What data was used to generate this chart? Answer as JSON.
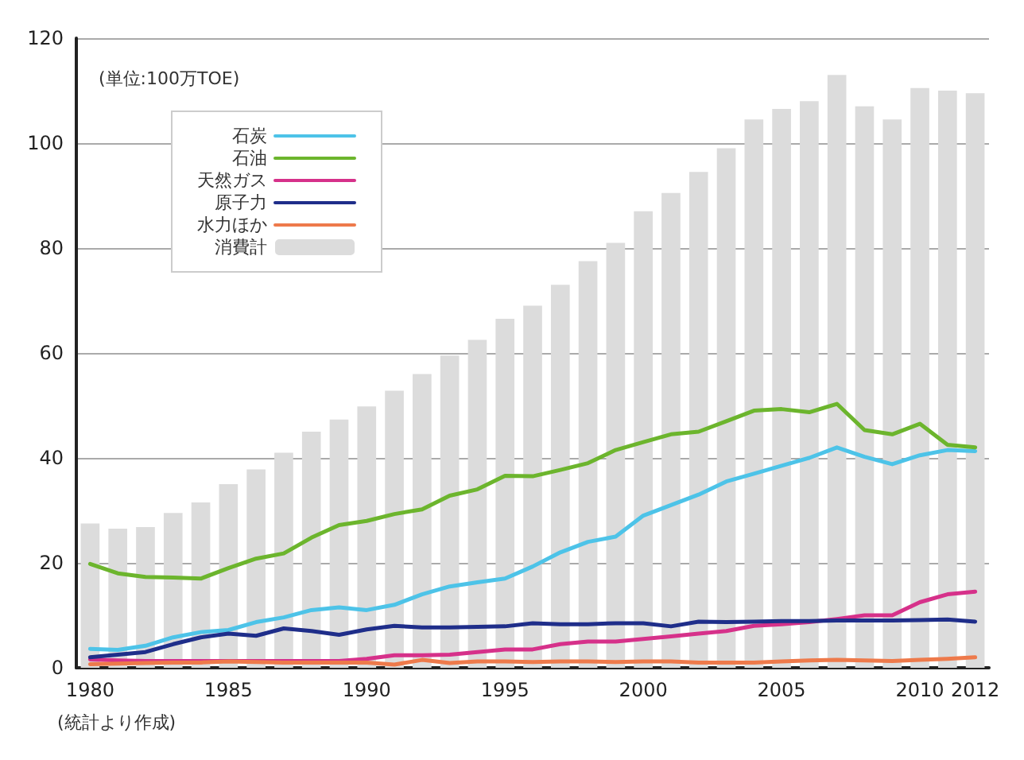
{
  "chart_data": {
    "type": "bar",
    "ylabel": "(単位:100万TOE)",
    "annotations": [
      "(統計より作成)"
    ],
    "categories": [
      "1980",
      null,
      null,
      null,
      null,
      "1985",
      null,
      null,
      null,
      null,
      "1990",
      null,
      null,
      null,
      null,
      "1995",
      null,
      null,
      null,
      null,
      "2000",
      null,
      null,
      null,
      null,
      "2005",
      null,
      null,
      null,
      null,
      "2010",
      null,
      "2012"
    ],
    "ylim": [
      0,
      120
    ],
    "yticks": [
      0,
      20,
      40,
      60,
      80,
      100,
      120
    ],
    "grid": "y",
    "legend": "top left",
    "marker": "none",
    "line_style": "solid",
    "series": [
      {
        "name": "石炭",
        "type": "line",
        "color": "#4dc3e8",
        "values": [
          3.6,
          3.4,
          4.2,
          5.8,
          6.8,
          7.2,
          8.7,
          9.6,
          11,
          11.5,
          11,
          12,
          14,
          15.5,
          16.3,
          17,
          19.3,
          22,
          24,
          25,
          29,
          31,
          33,
          35.5,
          37,
          38.5,
          40,
          42,
          40.2,
          38.8,
          40.5,
          41.5,
          41.3
        ]
      },
      {
        "name": "石油",
        "type": "line",
        "color": "#6cb52d",
        "values": [
          19.8,
          18,
          17.3,
          17.2,
          17,
          19,
          20.8,
          21.8,
          24.8,
          27.2,
          28,
          29.3,
          30.2,
          32.8,
          34,
          36.6,
          36.5,
          37.7,
          39,
          41.5,
          43,
          44.5,
          45,
          47,
          49,
          49.3,
          48.7,
          50.3,
          45.3,
          44.5,
          46.5,
          42.5,
          42
        ]
      },
      {
        "name": "天然ガス",
        "type": "line",
        "color": "#d6318a",
        "values": [
          1.6,
          1.4,
          1.3,
          1.3,
          1.3,
          1.3,
          1.3,
          1.3,
          1.3,
          1.3,
          1.7,
          2.4,
          2.4,
          2.5,
          3,
          3.5,
          3.5,
          4.5,
          5,
          5,
          5.5,
          6,
          6.5,
          7,
          8,
          8.3,
          8.7,
          9.3,
          10,
          10,
          12.5,
          14,
          14.5
        ]
      },
      {
        "name": "原子力",
        "type": "line",
        "color": "#1f2e8a",
        "values": [
          2,
          2.5,
          3,
          4.5,
          5.8,
          6.5,
          6.1,
          7.5,
          7,
          6.3,
          7.3,
          8,
          7.7,
          7.7,
          7.8,
          7.9,
          8.5,
          8.3,
          8.3,
          8.5,
          8.5,
          7.9,
          8.8,
          8.7,
          8.8,
          8.9,
          8.9,
          9,
          9,
          9,
          9.1,
          9.2,
          8.8
        ]
      },
      {
        "name": "水力ほか",
        "type": "line",
        "color": "#ee7a4b",
        "values": [
          0.7,
          0.8,
          0.9,
          1,
          1,
          1.2,
          1.1,
          1,
          1,
          1,
          1,
          0.6,
          1.5,
          0.9,
          1.2,
          1.2,
          1.1,
          1.2,
          1.2,
          1.1,
          1.2,
          1.2,
          1,
          1,
          1,
          1.2,
          1.4,
          1.5,
          1.4,
          1.3,
          1.5,
          1.7,
          2
        ]
      },
      {
        "name": "消費計",
        "color": "#dcdcdc",
        "values": [
          27.5,
          26.5,
          26.8,
          29.5,
          31.5,
          35,
          37.8,
          41,
          45,
          47.3,
          49.8,
          52.8,
          56,
          59.5,
          62.5,
          66.5,
          69,
          73,
          77.5,
          81,
          87,
          90.5,
          94.5,
          99,
          104.5,
          106.5,
          108,
          113,
          107,
          104.5,
          110.5,
          110,
          109.5
        ]
      }
    ]
  }
}
